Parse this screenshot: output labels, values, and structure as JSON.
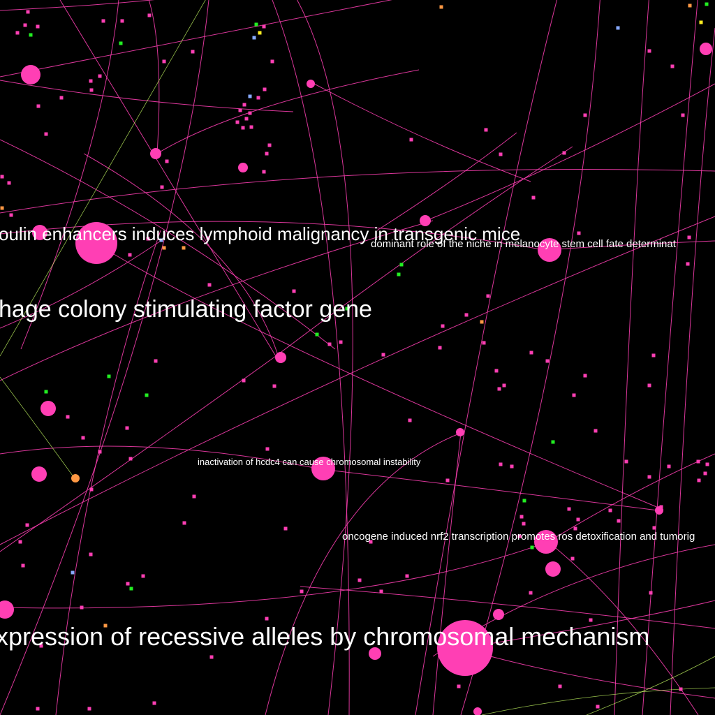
{
  "colors": {
    "background": "#000000",
    "edge_primary": "#ff3fb4",
    "edge_secondary": "#c8ff64",
    "node_primary": "#ff3fb4",
    "node_green": "#22ee22",
    "node_orange": "#ff9944",
    "node_blue": "#88aaff",
    "node_yellow": "#ffee22",
    "label": "#ffffff"
  },
  "labels": [
    "oulin enhancers induces lymphoid malignancy in transgenic mice",
    "dominant role of the niche in melanocyte stem cell fate determinat",
    "hage colony stimulating factor gene",
    "inactivation of hcdc4 can cause chromosomal instability",
    "oncogene induced nrf2 transcription promotes ros detoxification and tumorig",
    "xpression of recessive alleles by chromosomal mechanism"
  ]
}
